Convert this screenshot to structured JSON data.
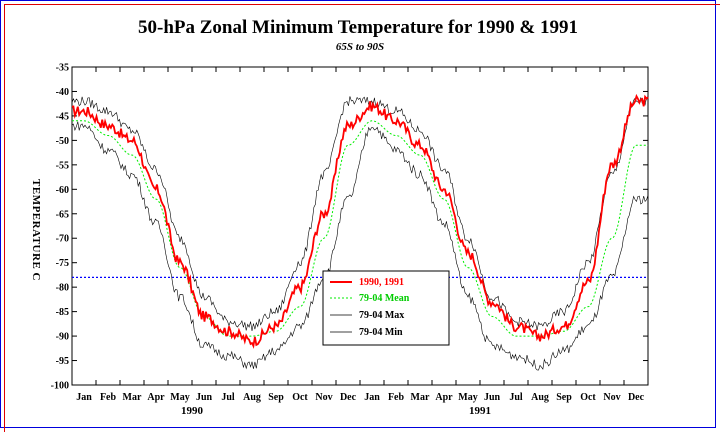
{
  "chart_data": {
    "type": "line",
    "title": "50-hPa Zonal Minimum Temperature for 1990 & 1991",
    "subtitle": "65S to 90S",
    "ylabel": "TEMPERATURE C",
    "ylim": [
      -100,
      -35
    ],
    "yticks": [
      "-35",
      "-40",
      "-45",
      "-50",
      "-55",
      "-60",
      "-65",
      "-70",
      "-75",
      "-80",
      "-85",
      "-90",
      "-95",
      "-100"
    ],
    "xticks": [
      "Jan",
      "Feb",
      "Mar",
      "Apr",
      "May",
      "Jun",
      "Jul",
      "Aug",
      "Sep",
      "Oct",
      "Nov",
      "Dec",
      "Jan",
      "Feb",
      "Mar",
      "Apr",
      "May",
      "Jun",
      "Jul",
      "Aug",
      "Sep",
      "Oct",
      "Nov",
      "Dec"
    ],
    "years": [
      "1990",
      "1991"
    ],
    "reference_line": -78,
    "legend": [
      "1990, 1991",
      "79-04 Mean",
      "79-04 Max",
      "79-04 Min"
    ],
    "colors": {
      "actual": "#ff0000",
      "mean": "#00ee00",
      "extremes": "#000000",
      "reference": "#0000ff"
    },
    "x_months": [
      0.5,
      1.5,
      2.5,
      3.5,
      4.5,
      5.5,
      6.5,
      7.5,
      8.5,
      9.5,
      10.5,
      11.5,
      12.5,
      13.5,
      14.5,
      15.5,
      16.5,
      17.5,
      18.5,
      19.5,
      20.5,
      21.5,
      22.5,
      23.5
    ],
    "series": [
      {
        "name": "1990, 1991",
        "values": [
          -44,
          -47,
          -50,
          -60,
          -75,
          -86,
          -89,
          -91,
          -88,
          -80,
          -65,
          -47,
          -43,
          -46,
          -51,
          -60,
          -73,
          -83,
          -88,
          -90,
          -88,
          -79,
          -55,
          -42
        ]
      },
      {
        "name": "79-04 Mean",
        "values": [
          -46,
          -49,
          -53,
          -62,
          -76,
          -86,
          -90,
          -90,
          -89,
          -84,
          -70,
          -51,
          -46,
          -49,
          -53,
          -62,
          -76,
          -86,
          -90,
          -90,
          -89,
          -84,
          -70,
          -51
        ]
      },
      {
        "name": "79-04 Max",
        "values": [
          -42,
          -44,
          -48,
          -56,
          -70,
          -82,
          -87,
          -88,
          -85,
          -75,
          -57,
          -42,
          -42,
          -44,
          -48,
          -56,
          -70,
          -82,
          -87,
          -88,
          -85,
          -75,
          -57,
          -42
        ]
      },
      {
        "name": "79-04 Min",
        "values": [
          -47,
          -52,
          -57,
          -67,
          -82,
          -92,
          -94,
          -96,
          -93,
          -88,
          -78,
          -62,
          -47,
          -52,
          -57,
          -67,
          -82,
          -92,
          -94,
          -96,
          -93,
          -88,
          -78,
          -62
        ]
      }
    ]
  }
}
